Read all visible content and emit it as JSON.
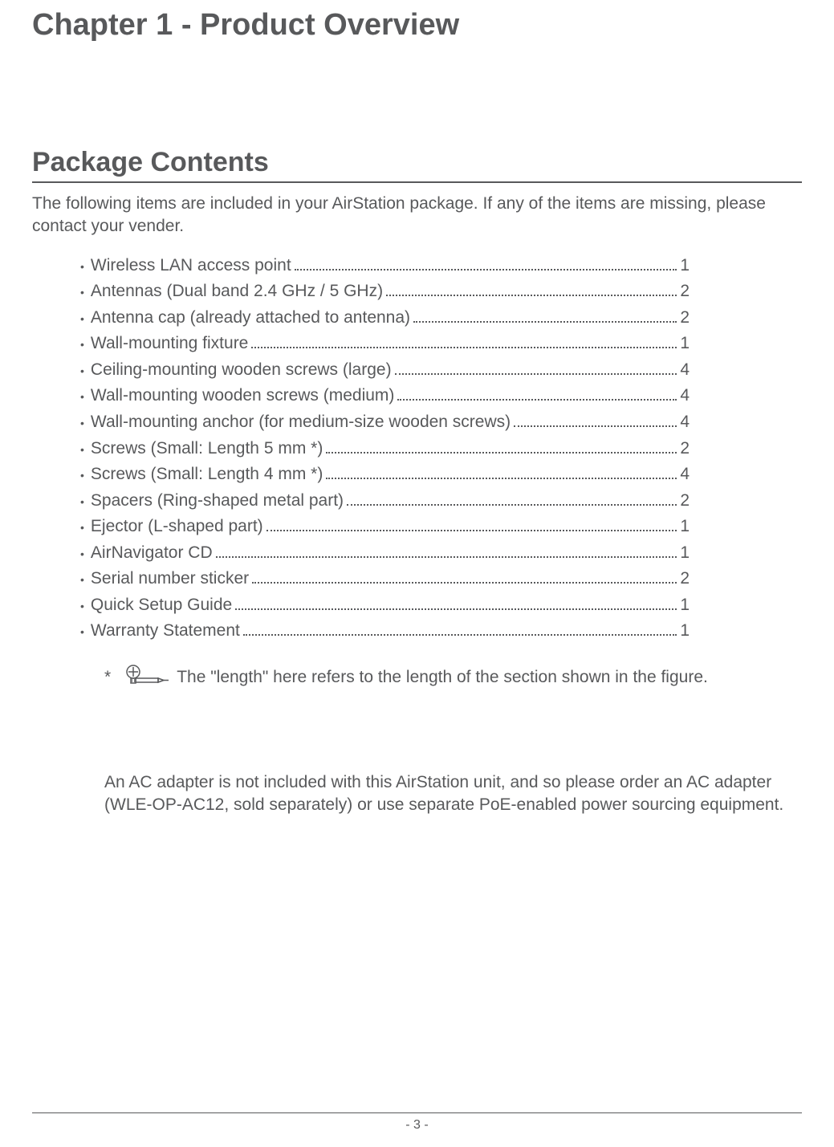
{
  "chapter_title": "Chapter 1 - Product Overview",
  "section_title": "Package Contents",
  "intro": "The following items are included in your AirStation package. If any of the items are missing, please contact your vender.",
  "items": [
    {
      "label": "Wireless LAN access point",
      "qty": "1"
    },
    {
      "label": "Antennas (Dual band 2.4 GHz / 5 GHz) ",
      "qty": "2"
    },
    {
      "label": "Antenna cap (already attached to antenna) ",
      "qty": "2"
    },
    {
      "label": "Wall-mounting fixture",
      "qty": "1"
    },
    {
      "label": "Ceiling-mounting wooden screws (large)",
      "qty": "4"
    },
    {
      "label": "Wall-mounting wooden screws (medium) ",
      "qty": "4"
    },
    {
      "label": "Wall-mounting anchor (for medium-size wooden screws)",
      "qty": "4"
    },
    {
      "label": "Screws (Small: Length 5 mm *)",
      "qty": "2"
    },
    {
      "label": "Screws (Small: Length 4 mm *)",
      "qty": "4"
    },
    {
      "label": "Spacers (Ring-shaped metal part)",
      "qty": "2"
    },
    {
      "label": "Ejector (L-shaped part)",
      "qty": "1"
    },
    {
      "label": "AirNavigator CD",
      "qty": "1"
    },
    {
      "label": "Serial number sticker",
      "qty": "2"
    },
    {
      "label": "Quick Setup Guide",
      "qty": "1"
    },
    {
      "label": "Warranty Statement",
      "qty": "1"
    }
  ],
  "footnote_marker": "*",
  "footnote_text": " The \"length\" here refers to the length of the section shown in the figure.",
  "note": "An AC adapter is not included with this AirStation unit, and so please order an AC adapter (WLE-OP-AC12, sold separately) or use separate PoE-enabled power sourcing equipment.",
  "page_number": "- 3 -",
  "colors": {
    "text": "#58595b",
    "background": "#ffffff",
    "rule": "#58595b"
  },
  "typography": {
    "chapter_title_size": 38,
    "section_title_size": 34,
    "body_size": 21,
    "footer_size": 16,
    "font_family": "Arial, Helvetica, sans-serif"
  }
}
